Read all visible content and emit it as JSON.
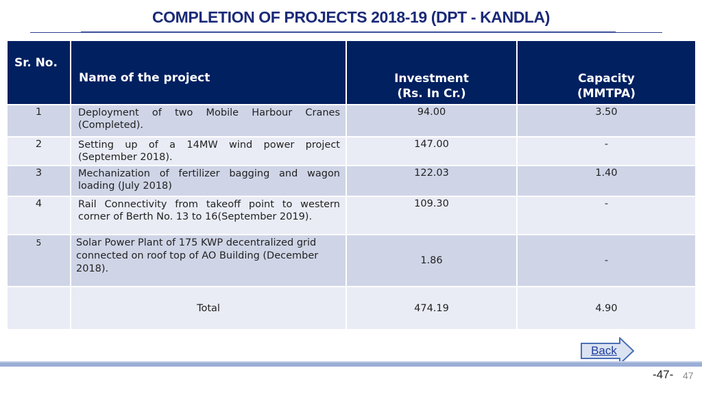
{
  "title": "COMPLETION OF PROJECTS 2018-19 (DPT - KANDLA)",
  "table": {
    "headers": {
      "sr": "Sr. No.",
      "name": "Name of the project",
      "investment_line1": "Investment",
      "investment_line2": "(Rs. In Cr.)",
      "capacity_line1": "Capacity",
      "capacity_line2": "(MMTPA)"
    },
    "rows": [
      {
        "sr": "1",
        "name": "Deployment of two Mobile Harbour Cranes (Completed).",
        "investment": "94.00",
        "capacity": "3.50"
      },
      {
        "sr": "2",
        "name": "Setting up of a 14MW wind power project (September 2018).",
        "investment": "147.00",
        "capacity": "-"
      },
      {
        "sr": "3",
        "name": "Mechanization of fertilizer bagging and wagon loading (July 2018)",
        "investment": "122.03",
        "capacity": "1.40"
      },
      {
        "sr": "4",
        "name": "Rail Connectivity from takeoff point to western corner of Berth No. 13 to 16(September 2019).",
        "investment": "109.30",
        "capacity": "-"
      },
      {
        "sr": "5",
        "name": "Solar Power Plant of 175 KWP decentralized grid connected on roof top of AO Building (December 2018).",
        "investment": "1.86",
        "capacity": "-"
      }
    ],
    "total": {
      "label": "Total",
      "investment": "474.19",
      "capacity": "4.90"
    }
  },
  "navigation": {
    "back_label": "Back"
  },
  "footer": {
    "page_label": "-47-",
    "slide_number": "47"
  },
  "colors": {
    "header_bg": "#012060",
    "row_dark": "#cfd5e7",
    "row_light": "#e9ecf5",
    "title": "#1a2a78"
  }
}
